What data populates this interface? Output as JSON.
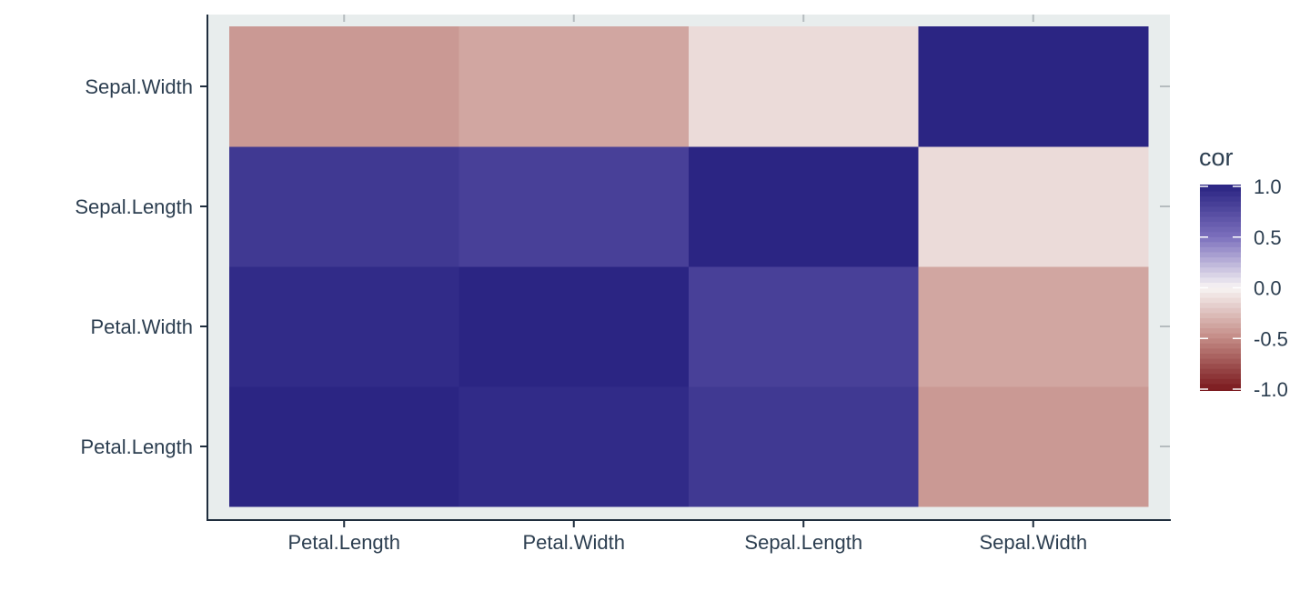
{
  "chart_data": {
    "type": "heatmap",
    "title": "",
    "xlabel": "",
    "ylabel": "",
    "x_categories": [
      "Petal.Length",
      "Petal.Width",
      "Sepal.Length",
      "Sepal.Width"
    ],
    "y_categories": [
      "Petal.Length",
      "Petal.Width",
      "Sepal.Length",
      "Sepal.Width"
    ],
    "values": [
      [
        1.0,
        0.96,
        0.87,
        -0.43
      ],
      [
        0.96,
        1.0,
        0.82,
        -0.37
      ],
      [
        0.87,
        0.82,
        1.0,
        -0.12
      ],
      [
        -0.43,
        -0.37,
        -0.12,
        1.0
      ]
    ],
    "legend": {
      "title": "cor",
      "position": "right",
      "range": [
        -1.0,
        1.0
      ],
      "ticks": [
        "1.0",
        "0.5",
        "0.0",
        "-0.5",
        "-1.0"
      ],
      "tick_values": [
        1.0,
        0.5,
        0.0,
        -0.5,
        -1.0
      ]
    },
    "colors": {
      "high": "#2b2583",
      "mid": "#f8f4f4",
      "low": "#7b1a1f",
      "panel_background": "#e8eded",
      "axis_line": "#1f2d3d",
      "tick_mark": "#1f2d3d",
      "panel_tick": "#b5bcbf",
      "text": "#2c3e50"
    },
    "grid": false
  }
}
